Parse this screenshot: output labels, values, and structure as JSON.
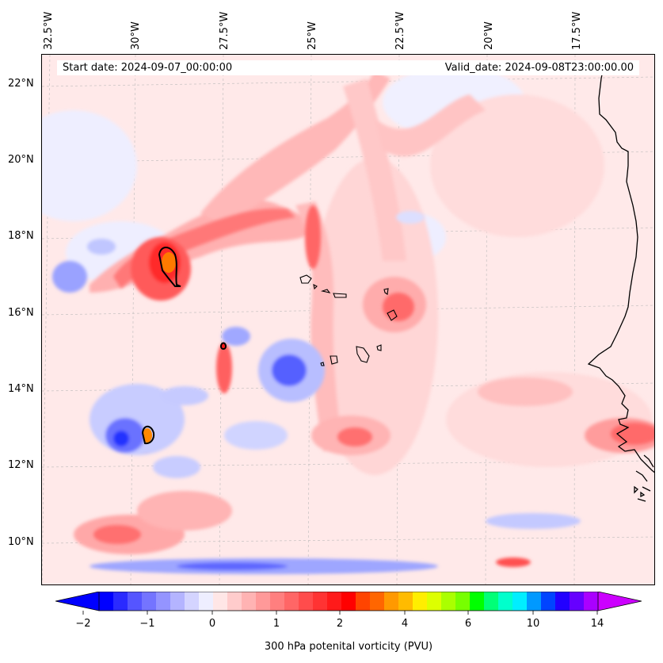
{
  "map": {
    "lon_labels": [
      "32.5°W",
      "30°W",
      "27.5°W",
      "25°W",
      "22.5°W",
      "20°W",
      "17.5°W"
    ],
    "lat_labels": [
      "22°N",
      "20°N",
      "18°N",
      "16°N",
      "14°N",
      "12°N",
      "10°N"
    ],
    "start_date": "Start date: 2024-09-07_00:00:00",
    "valid_date": "Valid_date: 2024-09-08T23:00:00.00",
    "field": "300 hPa potential vorticity",
    "colors": {
      "background_low_positive": "#ffe9e9",
      "positive_light": "#ffc4c4",
      "positive_mid": "#ff8a8a",
      "positive_strong": "#ff4a4a",
      "negative_light": "#d9ddff",
      "negative_mid": "#8b93ff",
      "negative_strong": "#1f2bff",
      "extreme": "#ff7a00",
      "coastline": "#000000"
    }
  },
  "colorbar": {
    "label": "300 hPa potenital vorticity (PVU)",
    "tick_labels": [
      "−2",
      "−1",
      "0",
      "1",
      "2",
      "4",
      "6",
      "10",
      "14"
    ],
    "colors": [
      "#0000ff",
      "#2a2aff",
      "#5555ff",
      "#7474ff",
      "#9494ff",
      "#b4b4ff",
      "#d4d4ff",
      "#eeeeff",
      "#ffe6e6",
      "#ffcccc",
      "#ffb3b3",
      "#ff9999",
      "#ff7f7f",
      "#ff6666",
      "#ff4c4c",
      "#ff3333",
      "#ff1a1a",
      "#ff0000",
      "#ff4400",
      "#ff6600",
      "#ff9900",
      "#ffbb00",
      "#ffee00",
      "#ddff00",
      "#aaff00",
      "#77ff00",
      "#00ff00",
      "#00ff77",
      "#00ffcc",
      "#00eeff",
      "#0099ff",
      "#0044ff",
      "#2200ff",
      "#6600ff",
      "#aa00ff"
    ],
    "extend_min_color": "#0000ff",
    "extend_max_color": "#cc00ff"
  }
}
